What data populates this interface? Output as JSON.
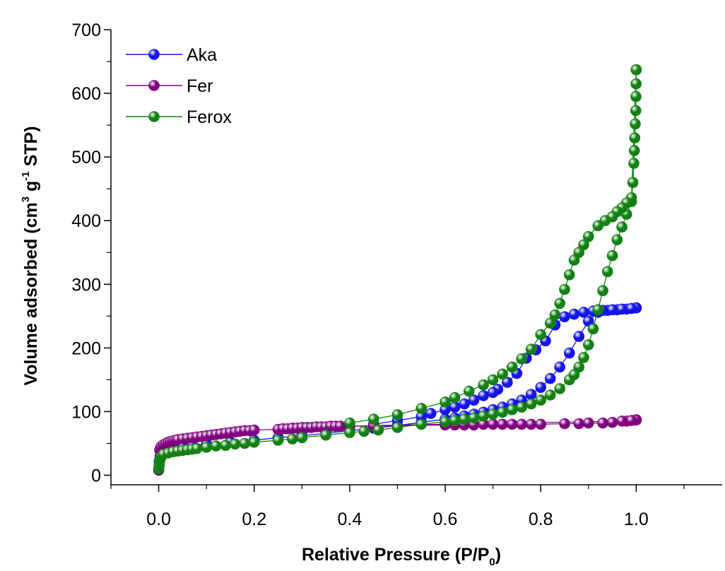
{
  "chart_data": {
    "type": "scatter",
    "xlabel": {
      "prefix": "Relative Pressure (P/P",
      "sub": "0",
      "suffix": ")"
    },
    "ylabel": {
      "p1": "Volume adsorbed (cm",
      "sup1": "3",
      "p2": " g",
      "sup2": "-1",
      "p3": " STP)"
    },
    "xlim": [
      -0.1,
      1.18
    ],
    "ylim": [
      -15,
      700
    ],
    "x_ticks": [
      0.0,
      0.2,
      0.4,
      0.6,
      0.8,
      1.0
    ],
    "x_tick_labels": [
      "0.0",
      "0.2",
      "0.4",
      "0.6",
      "0.8",
      "1.0"
    ],
    "y_ticks": [
      0,
      100,
      200,
      300,
      400,
      500,
      600,
      700
    ],
    "y_tick_labels": [
      "0",
      "100",
      "200",
      "300",
      "400",
      "500",
      "600",
      "700"
    ],
    "legend_position": "top-left",
    "series": [
      {
        "name": "Aka",
        "color": "#1515e6",
        "adsorption": [
          [
            0.0,
            10
          ],
          [
            0.001,
            22
          ],
          [
            0.003,
            30
          ],
          [
            0.006,
            35
          ],
          [
            0.01,
            38
          ],
          [
            0.02,
            41
          ],
          [
            0.03,
            43
          ],
          [
            0.05,
            45
          ],
          [
            0.07,
            47
          ],
          [
            0.1,
            49
          ],
          [
            0.15,
            52
          ],
          [
            0.2,
            55
          ],
          [
            0.25,
            59
          ],
          [
            0.3,
            62
          ],
          [
            0.35,
            66
          ],
          [
            0.4,
            70
          ],
          [
            0.45,
            74
          ],
          [
            0.5,
            78
          ],
          [
            0.55,
            83
          ],
          [
            0.6,
            88
          ],
          [
            0.62,
            90
          ],
          [
            0.64,
            93
          ],
          [
            0.66,
            96
          ],
          [
            0.68,
            99
          ],
          [
            0.7,
            103
          ],
          [
            0.72,
            107
          ],
          [
            0.74,
            112
          ],
          [
            0.76,
            118
          ],
          [
            0.78,
            127
          ],
          [
            0.8,
            138
          ],
          [
            0.82,
            152
          ],
          [
            0.84,
            170
          ],
          [
            0.86,
            192
          ],
          [
            0.88,
            218
          ],
          [
            0.9,
            242
          ],
          [
            0.92,
            256
          ],
          [
            0.94,
            259
          ],
          [
            0.96,
            260
          ],
          [
            0.98,
            261
          ],
          [
            0.99,
            262
          ],
          [
            1.0,
            263
          ]
        ],
        "desorption": [
          [
            1.0,
            263
          ],
          [
            0.99,
            262
          ],
          [
            0.97,
            261
          ],
          [
            0.95,
            260
          ],
          [
            0.93,
            259
          ],
          [
            0.91,
            258
          ],
          [
            0.89,
            256
          ],
          [
            0.87,
            253
          ],
          [
            0.85,
            249
          ],
          [
            0.83,
            236
          ],
          [
            0.81,
            211
          ],
          [
            0.79,
            197
          ],
          [
            0.77,
            184
          ],
          [
            0.75,
            160
          ],
          [
            0.73,
            146
          ],
          [
            0.71,
            135
          ],
          [
            0.7,
            130
          ],
          [
            0.68,
            125
          ],
          [
            0.66,
            118
          ],
          [
            0.64,
            112
          ],
          [
            0.62,
            107
          ],
          [
            0.6,
            103
          ],
          [
            0.57,
            97
          ],
          [
            0.55,
            92
          ],
          [
            0.5,
            86
          ],
          [
            0.45,
            80
          ]
        ]
      },
      {
        "name": "Fer",
        "color": "#800080",
        "adsorption": [
          [
            0.0,
            8
          ],
          [
            0.002,
            40
          ],
          [
            0.005,
            45
          ],
          [
            0.01,
            48
          ],
          [
            0.015,
            50
          ],
          [
            0.02,
            52
          ],
          [
            0.025,
            53
          ],
          [
            0.03,
            54
          ],
          [
            0.035,
            55
          ],
          [
            0.04,
            56
          ],
          [
            0.05,
            57
          ],
          [
            0.06,
            58
          ],
          [
            0.07,
            59
          ],
          [
            0.08,
            60
          ],
          [
            0.09,
            61
          ],
          [
            0.1,
            62
          ],
          [
            0.11,
            63
          ],
          [
            0.12,
            64
          ],
          [
            0.13,
            65
          ],
          [
            0.14,
            66
          ],
          [
            0.15,
            67
          ],
          [
            0.16,
            68
          ],
          [
            0.17,
            69
          ],
          [
            0.18,
            70
          ],
          [
            0.19,
            70
          ],
          [
            0.2,
            71
          ],
          [
            0.25,
            72
          ],
          [
            0.26,
            73
          ],
          [
            0.27,
            73
          ],
          [
            0.28,
            74
          ],
          [
            0.29,
            74
          ],
          [
            0.3,
            75
          ],
          [
            0.31,
            75
          ],
          [
            0.32,
            75
          ],
          [
            0.33,
            76
          ],
          [
            0.34,
            76
          ],
          [
            0.35,
            76
          ],
          [
            0.36,
            77
          ],
          [
            0.37,
            77
          ],
          [
            0.38,
            77
          ],
          [
            0.4,
            77
          ],
          [
            0.6,
            79
          ],
          [
            0.62,
            79
          ],
          [
            0.64,
            79
          ],
          [
            0.66,
            79
          ],
          [
            0.68,
            80
          ],
          [
            0.7,
            80
          ],
          [
            0.72,
            80
          ],
          [
            0.74,
            80
          ],
          [
            0.76,
            80
          ],
          [
            0.78,
            80
          ],
          [
            0.8,
            80
          ],
          [
            0.85,
            81
          ],
          [
            0.88,
            81
          ],
          [
            0.9,
            82
          ],
          [
            0.93,
            82
          ],
          [
            0.95,
            83
          ],
          [
            0.98,
            85
          ],
          [
            0.99,
            86
          ],
          [
            1.0,
            87
          ]
        ],
        "desorption": [
          [
            1.0,
            87
          ],
          [
            0.99,
            86
          ],
          [
            0.97,
            85
          ],
          [
            0.6,
            80
          ],
          [
            0.45,
            78
          ],
          [
            0.4,
            77
          ]
        ]
      },
      {
        "name": "Ferox",
        "color": "#128012",
        "adsorption": [
          [
            0.0,
            10
          ],
          [
            0.001,
            16
          ],
          [
            0.002,
            22
          ],
          [
            0.004,
            27
          ],
          [
            0.006,
            30
          ],
          [
            0.01,
            33
          ],
          [
            0.02,
            35
          ],
          [
            0.03,
            37
          ],
          [
            0.04,
            38
          ],
          [
            0.05,
            39
          ],
          [
            0.06,
            40
          ],
          [
            0.07,
            41
          ],
          [
            0.08,
            42
          ],
          [
            0.1,
            44
          ],
          [
            0.12,
            46
          ],
          [
            0.14,
            47
          ],
          [
            0.16,
            49
          ],
          [
            0.18,
            50
          ],
          [
            0.2,
            52
          ],
          [
            0.25,
            55
          ],
          [
            0.28,
            57
          ],
          [
            0.3,
            59
          ],
          [
            0.35,
            63
          ],
          [
            0.4,
            67
          ],
          [
            0.43,
            69
          ],
          [
            0.46,
            71
          ],
          [
            0.5,
            75
          ],
          [
            0.55,
            80
          ],
          [
            0.6,
            84
          ],
          [
            0.62,
            86
          ],
          [
            0.64,
            88
          ],
          [
            0.66,
            90
          ],
          [
            0.68,
            93
          ],
          [
            0.7,
            96
          ],
          [
            0.72,
            99
          ],
          [
            0.74,
            103
          ],
          [
            0.76,
            107
          ],
          [
            0.78,
            112
          ],
          [
            0.8,
            118
          ],
          [
            0.82,
            126
          ],
          [
            0.84,
            136
          ],
          [
            0.86,
            150
          ],
          [
            0.87,
            158
          ],
          [
            0.88,
            170
          ],
          [
            0.89,
            185
          ],
          [
            0.9,
            205
          ],
          [
            0.91,
            230
          ],
          [
            0.92,
            260
          ],
          [
            0.93,
            290
          ],
          [
            0.94,
            320
          ],
          [
            0.95,
            345
          ],
          [
            0.96,
            370
          ],
          [
            0.97,
            390
          ],
          [
            0.98,
            410
          ],
          [
            0.99,
            430
          ],
          [
            0.993,
            460
          ],
          [
            0.995,
            490
          ],
          [
            0.996,
            510
          ],
          [
            0.997,
            530
          ],
          [
            0.998,
            552
          ],
          [
            0.999,
            573
          ],
          [
            0.9995,
            595
          ],
          [
            0.9998,
            615
          ],
          [
            1.0,
            637
          ]
        ],
        "desorption": [
          [
            1.0,
            637
          ],
          [
            0.99,
            436
          ],
          [
            0.98,
            428
          ],
          [
            0.97,
            420
          ],
          [
            0.96,
            414
          ],
          [
            0.95,
            406
          ],
          [
            0.935,
            400
          ],
          [
            0.92,
            392
          ],
          [
            0.9,
            375
          ],
          [
            0.89,
            362
          ],
          [
            0.88,
            350
          ],
          [
            0.87,
            338
          ],
          [
            0.86,
            315
          ],
          [
            0.85,
            292
          ],
          [
            0.84,
            270
          ],
          [
            0.83,
            252
          ],
          [
            0.82,
            239
          ],
          [
            0.8,
            221
          ],
          [
            0.78,
            198
          ],
          [
            0.76,
            183
          ],
          [
            0.74,
            170
          ],
          [
            0.72,
            159
          ],
          [
            0.7,
            150
          ],
          [
            0.68,
            142
          ],
          [
            0.65,
            132
          ],
          [
            0.62,
            122
          ],
          [
            0.6,
            115
          ],
          [
            0.55,
            105
          ],
          [
            0.5,
            95
          ],
          [
            0.45,
            88
          ],
          [
            0.4,
            82
          ]
        ]
      }
    ]
  }
}
